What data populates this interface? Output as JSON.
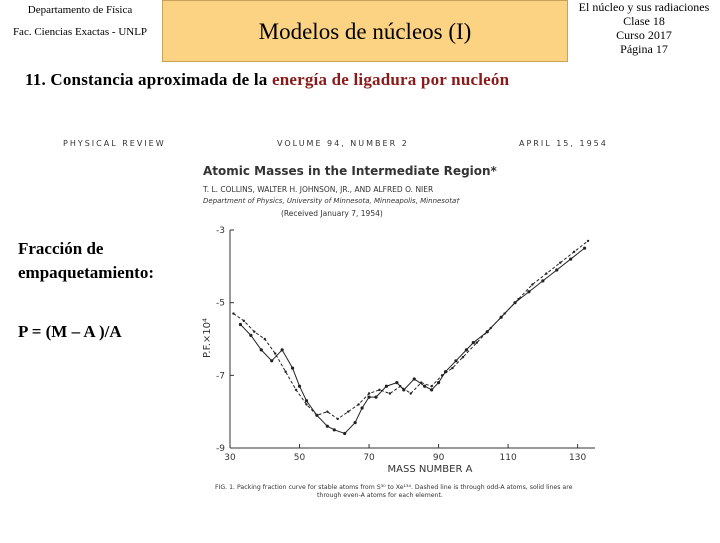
{
  "header": {
    "left_line1": "Departamento de Física",
    "left_line2": "Fac. Ciencias Exactas - UNLP",
    "title": "Modelos de núcleos (I)",
    "right_lines": [
      "El núcleo y sus radiaciones",
      "Clase 18",
      "Curso 2017",
      "Página 17"
    ]
  },
  "heading": {
    "prefix": "11.  Constancia aproximada de la ",
    "highlight": "energía de ligadura por nucleón"
  },
  "paper": {
    "journal": "PHYSICAL REVIEW",
    "volume": "VOLUME 94, NUMBER 2",
    "date": "APRIL 15, 1954",
    "title": "Atomic Masses in the Intermediate Region*",
    "authors": "T. L. COLLINS, WALTER H. JOHNSON, JR., AND ALFRED O. NIER",
    "affiliation": "Department of Physics, University of Minnesota, Minneapolis, Minnesota†",
    "received": "(Received January 7, 1954)",
    "caption_line1": "FIG. 1. Packing fraction curve for stable atoms from S³⁰ to Xe¹³⁴. Dashed line is through odd-A atoms, solid lines are",
    "caption_line2": "through even-A atoms for each element."
  },
  "chart_data": {
    "type": "line",
    "xlabel": "MASS NUMBER  A",
    "ylabel": "P.F.×10⁴",
    "xlim": [
      30,
      135
    ],
    "ylim": [
      -9,
      -3
    ],
    "x_ticks": [
      "30",
      "50",
      "70",
      "90",
      "110",
      "130"
    ],
    "y_ticks": [
      "-3",
      "-5",
      "-7",
      "-9"
    ],
    "series": [
      {
        "style": "solid",
        "x": [
          33,
          36,
          39,
          42,
          45,
          48,
          50,
          52,
          55,
          58,
          60,
          63,
          66,
          68,
          70,
          72,
          75,
          78,
          80,
          83,
          86,
          88,
          90,
          92,
          95,
          98,
          100,
          104,
          108,
          112,
          116,
          120,
          124,
          128,
          132
        ],
        "y": [
          -5.6,
          -5.9,
          -6.3,
          -6.6,
          -6.3,
          -6.8,
          -7.3,
          -7.7,
          -8.1,
          -8.4,
          -8.5,
          -8.6,
          -8.3,
          -7.9,
          -7.6,
          -7.6,
          -7.3,
          -7.2,
          -7.4,
          -7.1,
          -7.3,
          -7.4,
          -7.2,
          -6.9,
          -6.6,
          -6.3,
          -6.1,
          -5.8,
          -5.4,
          -5.0,
          -4.7,
          -4.4,
          -4.1,
          -3.8,
          -3.5
        ]
      },
      {
        "style": "dashed",
        "x": [
          31,
          34,
          37,
          40,
          43,
          46,
          49,
          52,
          55,
          58,
          61,
          64,
          67,
          70,
          73,
          76,
          79,
          82,
          85,
          88,
          91,
          94,
          97,
          101,
          105,
          109,
          113,
          117,
          121,
          125,
          129,
          133
        ],
        "y": [
          -5.3,
          -5.5,
          -5.8,
          -6.0,
          -6.4,
          -6.9,
          -7.4,
          -7.8,
          -8.1,
          -8.0,
          -8.2,
          -8.0,
          -7.8,
          -7.5,
          -7.4,
          -7.5,
          -7.3,
          -7.5,
          -7.2,
          -7.3,
          -7.0,
          -6.8,
          -6.5,
          -6.1,
          -5.7,
          -5.3,
          -4.9,
          -4.5,
          -4.2,
          -3.9,
          -3.6,
          -3.3
        ]
      }
    ]
  },
  "side": {
    "label_line1": "Fracción de",
    "label_line2": "empaquetamiento:",
    "formula": "P = (M – A )/A"
  }
}
